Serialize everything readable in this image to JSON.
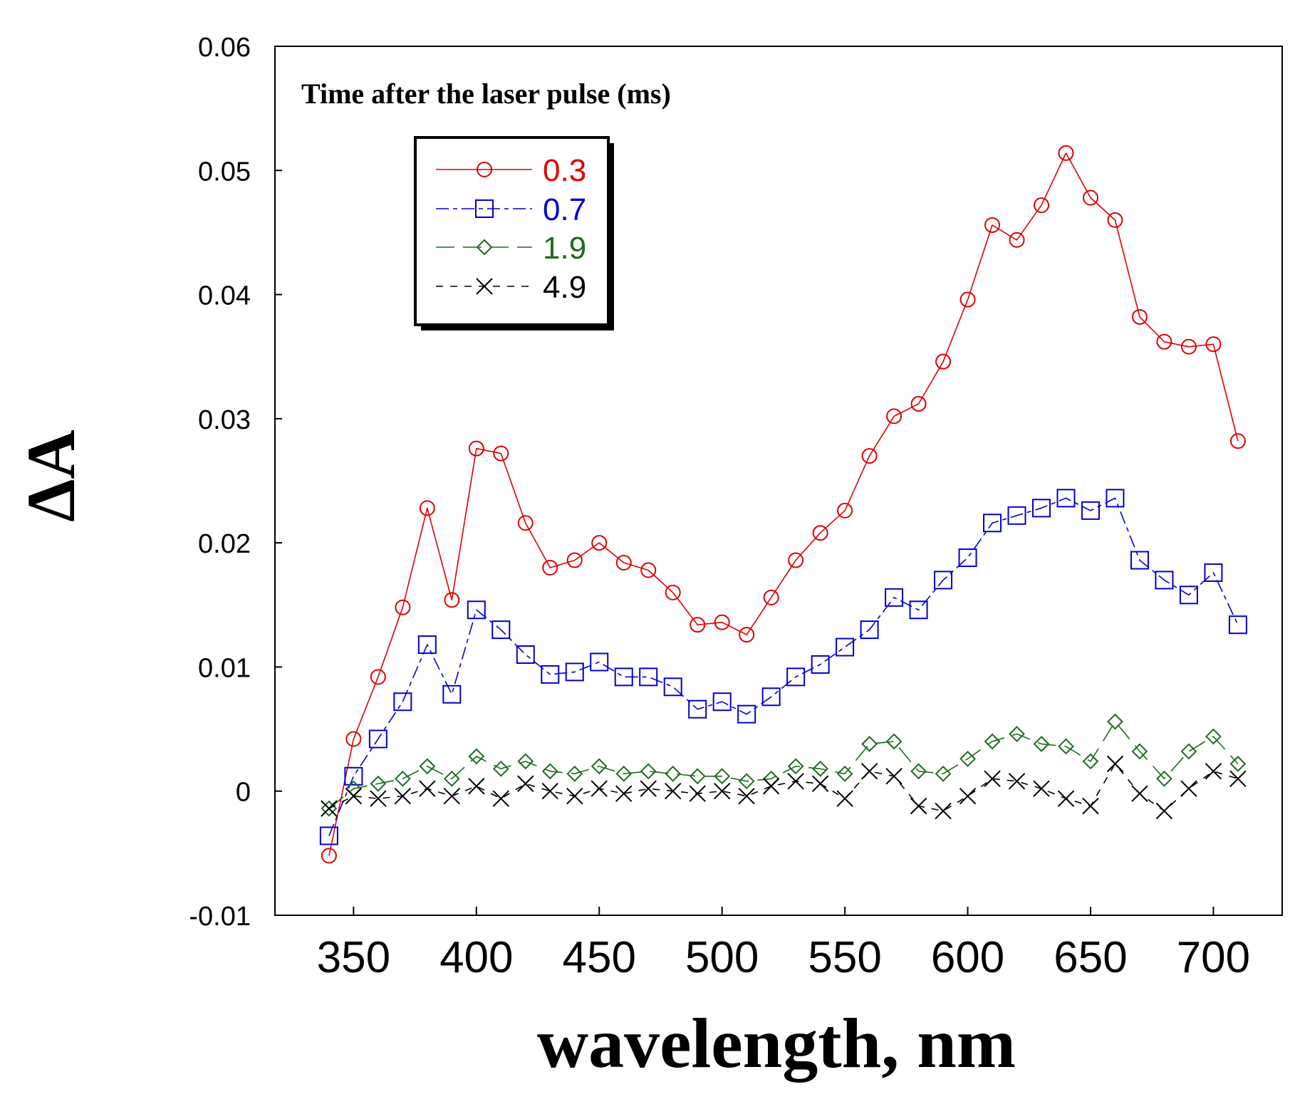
{
  "chart_data": {
    "type": "line",
    "title": "",
    "xlabel": "wavelength, nm",
    "ylabel": "ΔA",
    "xlim": [
      318,
      728
    ],
    "ylim": [
      -0.01,
      0.06
    ],
    "xticks": [
      350,
      400,
      450,
      500,
      550,
      600,
      650,
      700
    ],
    "xtick_labels": [
      "350",
      "400",
      "450",
      "500",
      "550",
      "600",
      "650",
      "700"
    ],
    "yticks": [
      -0.01,
      0,
      0.01,
      0.02,
      0.03,
      0.04,
      0.05,
      0.06
    ],
    "ytick_labels": [
      "-0.01",
      "0",
      "0.01",
      "0.02",
      "0.03",
      "0.04",
      "0.05",
      "0.06"
    ],
    "grid": false,
    "legend_title": "Time after the laser pulse (ms)",
    "legend_position": "top-left",
    "series": [
      {
        "name": "0.3",
        "color": "#e00000",
        "marker": "circle",
        "dash": "",
        "x": [
          340,
          350,
          360,
          370,
          380,
          390,
          400,
          410,
          420,
          430,
          440,
          450,
          460,
          470,
          480,
          490,
          500,
          510,
          520,
          530,
          540,
          550,
          560,
          570,
          580,
          590,
          600,
          610,
          620,
          630,
          640,
          650,
          660,
          670,
          680,
          690,
          700,
          710
        ],
        "values": [
          -0.0052,
          0.0042,
          0.0092,
          0.0148,
          0.0228,
          0.0154,
          0.0276,
          0.0272,
          0.0216,
          0.018,
          0.0186,
          0.02,
          0.0184,
          0.0178,
          0.016,
          0.0134,
          0.0136,
          0.0126,
          0.0156,
          0.0186,
          0.0208,
          0.0226,
          0.027,
          0.0302,
          0.0312,
          0.0346,
          0.0396,
          0.0456,
          0.0444,
          0.0472,
          0.0514,
          0.0478,
          0.046,
          0.0382,
          0.0362,
          0.0358,
          0.036,
          0.0282
        ]
      },
      {
        "name": "0.7",
        "color": "#0000d0",
        "marker": "square",
        "dash": "18 6 6 6",
        "x": [
          340,
          350,
          360,
          370,
          380,
          390,
          400,
          410,
          420,
          430,
          440,
          450,
          460,
          470,
          480,
          490,
          500,
          510,
          520,
          530,
          540,
          550,
          560,
          570,
          580,
          590,
          600,
          610,
          620,
          630,
          640,
          650,
          660,
          670,
          680,
          690,
          700,
          710
        ],
        "values": [
          -0.0036,
          0.0012,
          0.0042,
          0.0072,
          0.0118,
          0.0078,
          0.0146,
          0.013,
          0.011,
          0.0094,
          0.0096,
          0.0104,
          0.0092,
          0.0092,
          0.0084,
          0.0066,
          0.0072,
          0.0062,
          0.0076,
          0.0092,
          0.0102,
          0.0116,
          0.013,
          0.0156,
          0.0146,
          0.017,
          0.0188,
          0.0216,
          0.0222,
          0.0228,
          0.0236,
          0.0226,
          0.0236,
          0.0186,
          0.017,
          0.0158,
          0.0176,
          0.0134
        ]
      },
      {
        "name": "1.9",
        "color": "#1f6a1f",
        "marker": "diamond",
        "dash": "26 12",
        "x": [
          340,
          350,
          360,
          370,
          380,
          390,
          400,
          410,
          420,
          430,
          440,
          450,
          460,
          470,
          480,
          490,
          500,
          510,
          520,
          530,
          540,
          550,
          560,
          570,
          580,
          590,
          600,
          610,
          620,
          630,
          640,
          650,
          660,
          670,
          680,
          690,
          700,
          710
        ],
        "values": [
          -0.0014,
          0.0002,
          0.0006,
          0.001,
          0.002,
          0.001,
          0.0028,
          0.0018,
          0.0024,
          0.0016,
          0.0014,
          0.002,
          0.0014,
          0.0016,
          0.0014,
          0.0012,
          0.0012,
          0.0008,
          0.001,
          0.002,
          0.0018,
          0.0014,
          0.0038,
          0.004,
          0.0016,
          0.0014,
          0.0026,
          0.004,
          0.0046,
          0.0038,
          0.0036,
          0.0024,
          0.0056,
          0.0032,
          0.001,
          0.0032,
          0.0044,
          0.0022
        ]
      },
      {
        "name": "4.9",
        "color": "#000000",
        "marker": "x",
        "dash": "10 10",
        "x": [
          340,
          350,
          360,
          370,
          380,
          390,
          400,
          410,
          420,
          430,
          440,
          450,
          460,
          470,
          480,
          490,
          500,
          510,
          520,
          530,
          540,
          550,
          560,
          570,
          580,
          590,
          600,
          610,
          620,
          630,
          640,
          650,
          660,
          670,
          680,
          690,
          700,
          710
        ],
        "values": [
          -0.0014,
          -0.0004,
          -0.0006,
          -0.0004,
          0.0002,
          -0.0004,
          0.0004,
          -0.0006,
          0.0006,
          0.0,
          -0.0004,
          0.0002,
          -0.0002,
          0.0002,
          0.0,
          -0.0002,
          0.0,
          -0.0004,
          0.0004,
          0.0008,
          0.0006,
          -0.0006,
          0.0016,
          0.0012,
          -0.0012,
          -0.0016,
          -0.0004,
          0.001,
          0.0008,
          0.0002,
          -0.0006,
          -0.0012,
          0.0022,
          -0.0002,
          -0.0016,
          0.0002,
          0.0016,
          0.001
        ]
      }
    ]
  }
}
